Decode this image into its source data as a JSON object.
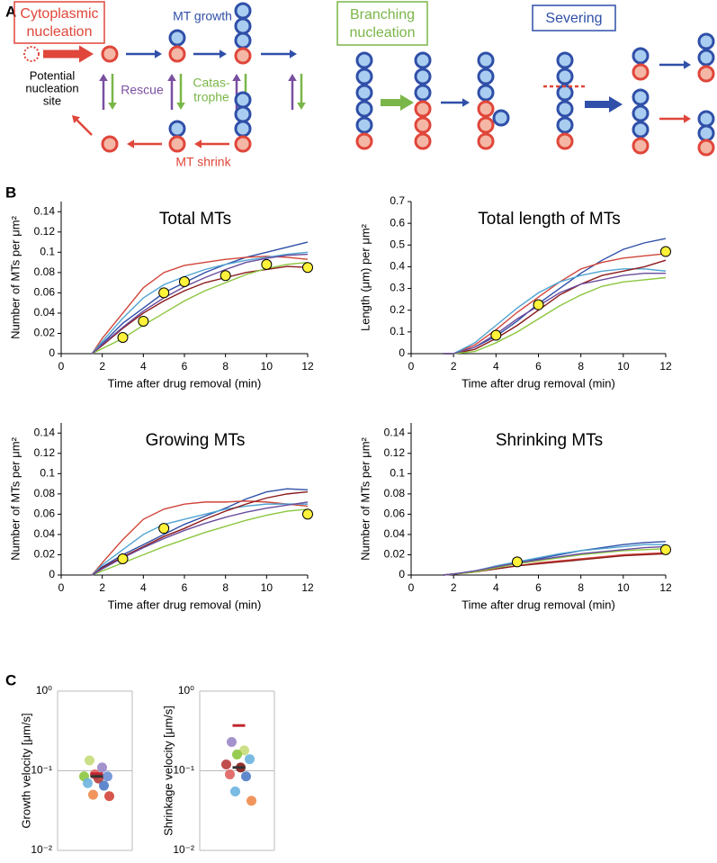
{
  "panel_labels": [
    "A",
    "B",
    "C"
  ],
  "diagram": {
    "cytoplasmic_nucleation": [
      "Cytoplasmic",
      "nucleation"
    ],
    "mt_growth": "MT growth",
    "potential_site": [
      "Potential",
      "nucleation",
      "site"
    ],
    "rescue": "Rescue",
    "catastrophe": [
      "Catas-",
      "trophe"
    ],
    "mt_shrink": "MT shrink",
    "branching_nucleation": [
      "Branching",
      "nucleation"
    ],
    "severing": "Severing"
  },
  "chart_data": [
    {
      "type": "line",
      "title": "Total MTs",
      "xlabel": "Time after drug removal (min)",
      "ylabel": "Number of MTs per μm²",
      "xlim": [
        0,
        12
      ],
      "xticks": [
        0,
        2,
        4,
        6,
        8,
        10,
        12
      ],
      "ylim": [
        0,
        0.15
      ],
      "yticks": [
        0,
        0.02,
        0.04,
        0.06,
        0.08,
        0.1,
        0.12,
        0.14
      ],
      "x": [
        1.5,
        2,
        3,
        4,
        5,
        6,
        7,
        8,
        9,
        10,
        11,
        12
      ],
      "series": [
        {
          "color": "#2f4fa8",
          "values": [
            0,
            0.01,
            0.03,
            0.045,
            0.06,
            0.07,
            0.08,
            0.088,
            0.095,
            0.1,
            0.105,
            0.11
          ]
        },
        {
          "color": "#d0453a",
          "values": [
            0,
            0.015,
            0.04,
            0.065,
            0.08,
            0.087,
            0.09,
            0.093,
            0.095,
            0.096,
            0.095,
            0.093
          ]
        },
        {
          "color": "#4fa3d1",
          "values": [
            0,
            0.012,
            0.035,
            0.055,
            0.068,
            0.076,
            0.083,
            0.088,
            0.092,
            0.095,
            0.098,
            0.1
          ]
        },
        {
          "color": "#8b1a1a",
          "values": [
            0,
            0.008,
            0.025,
            0.04,
            0.052,
            0.062,
            0.07,
            0.075,
            0.08,
            0.083,
            0.086,
            0.085
          ]
        },
        {
          "color": "#8cc63f",
          "values": [
            0,
            0.005,
            0.015,
            0.028,
            0.04,
            0.052,
            0.062,
            0.07,
            0.078,
            0.084,
            0.088,
            0.09
          ]
        },
        {
          "color": "#6a4c9c",
          "values": [
            0,
            0.009,
            0.026,
            0.042,
            0.055,
            0.066,
            0.075,
            0.083,
            0.09,
            0.094,
            0.097,
            0.098
          ]
        }
      ],
      "points": {
        "x": [
          3,
          4,
          5,
          6,
          8,
          10,
          12
        ],
        "values": [
          0.016,
          0.032,
          0.06,
          0.071,
          0.077,
          0.088,
          0.085
        ]
      }
    },
    {
      "type": "line",
      "title": "Total length of MTs",
      "xlabel": "Time after drug removal (min)",
      "ylabel": "Length (μm) per μm²",
      "xlim": [
        0,
        12
      ],
      "xticks": [
        0,
        2,
        4,
        6,
        8,
        10,
        12
      ],
      "ylim": [
        0,
        0.7
      ],
      "yticks": [
        0,
        0.1,
        0.2,
        0.3,
        0.4,
        0.5,
        0.6,
        0.7
      ],
      "x": [
        1.5,
        2,
        3,
        4,
        5,
        6,
        7,
        8,
        9,
        10,
        11,
        12
      ],
      "series": [
        {
          "color": "#2f4fa8",
          "values": [
            0,
            0,
            0.03,
            0.08,
            0.15,
            0.23,
            0.3,
            0.37,
            0.43,
            0.48,
            0.51,
            0.53
          ]
        },
        {
          "color": "#d0453a",
          "values": [
            0,
            0,
            0.04,
            0.11,
            0.19,
            0.26,
            0.33,
            0.39,
            0.42,
            0.44,
            0.45,
            0.46
          ]
        },
        {
          "color": "#4fa3d1",
          "values": [
            0,
            0,
            0.05,
            0.13,
            0.21,
            0.28,
            0.33,
            0.36,
            0.38,
            0.39,
            0.39,
            0.38
          ]
        },
        {
          "color": "#8b1a1a",
          "values": [
            0,
            0,
            0.02,
            0.07,
            0.13,
            0.2,
            0.27,
            0.32,
            0.36,
            0.38,
            0.4,
            0.43
          ]
        },
        {
          "color": "#8cc63f",
          "values": [
            0,
            0,
            0.01,
            0.05,
            0.1,
            0.16,
            0.22,
            0.27,
            0.31,
            0.33,
            0.34,
            0.35
          ]
        },
        {
          "color": "#6a4c9c",
          "values": [
            0,
            0,
            0.03,
            0.09,
            0.16,
            0.22,
            0.28,
            0.32,
            0.34,
            0.36,
            0.37,
            0.37
          ]
        }
      ],
      "points": {
        "x": [
          4,
          6,
          12
        ],
        "values": [
          0.085,
          0.225,
          0.47
        ]
      }
    },
    {
      "type": "line",
      "title": "Growing MTs",
      "xlabel": "Time after drug removal (min)",
      "ylabel": "Number of MTs per μm²",
      "xlim": [
        0,
        12
      ],
      "xticks": [
        0,
        2,
        4,
        6,
        8,
        10,
        12
      ],
      "ylim": [
        0,
        0.15
      ],
      "yticks": [
        0,
        0.02,
        0.04,
        0.06,
        0.08,
        0.1,
        0.12,
        0.14
      ],
      "x": [
        1.5,
        2,
        3,
        4,
        5,
        6,
        7,
        8,
        9,
        10,
        11,
        12
      ],
      "series": [
        {
          "color": "#2f4fa8",
          "values": [
            0,
            0.008,
            0.02,
            0.03,
            0.04,
            0.05,
            0.058,
            0.066,
            0.075,
            0.082,
            0.085,
            0.084
          ]
        },
        {
          "color": "#d0453a",
          "values": [
            0,
            0.012,
            0.035,
            0.055,
            0.065,
            0.07,
            0.072,
            0.072,
            0.073,
            0.072,
            0.07,
            0.068
          ]
        },
        {
          "color": "#4fa3d1",
          "values": [
            0,
            0.01,
            0.025,
            0.04,
            0.05,
            0.055,
            0.06,
            0.065,
            0.068,
            0.07,
            0.07,
            0.07
          ]
        },
        {
          "color": "#8b1a1a",
          "values": [
            0,
            0.007,
            0.018,
            0.028,
            0.038,
            0.046,
            0.055,
            0.063,
            0.07,
            0.076,
            0.08,
            0.082
          ]
        },
        {
          "color": "#8cc63f",
          "values": [
            0,
            0.004,
            0.012,
            0.02,
            0.028,
            0.035,
            0.042,
            0.048,
            0.054,
            0.059,
            0.063,
            0.065
          ]
        },
        {
          "color": "#6a4c9c",
          "values": [
            0,
            0.006,
            0.017,
            0.027,
            0.036,
            0.044,
            0.051,
            0.057,
            0.062,
            0.066,
            0.069,
            0.072
          ]
        }
      ],
      "points": {
        "x": [
          3,
          5,
          12
        ],
        "values": [
          0.016,
          0.046,
          0.06
        ]
      }
    },
    {
      "type": "line",
      "title": "Shrinking MTs",
      "xlabel": "Time after drug removal (min)",
      "ylabel": "Number of MTs per μm²",
      "xlim": [
        0,
        12
      ],
      "xticks": [
        0,
        2,
        4,
        6,
        8,
        10,
        12
      ],
      "ylim": [
        0,
        0.15
      ],
      "yticks": [
        0,
        0.02,
        0.04,
        0.06,
        0.08,
        0.1,
        0.12,
        0.14
      ],
      "x": [
        1.5,
        2,
        3,
        4,
        5,
        6,
        7,
        8,
        9,
        10,
        11,
        12
      ],
      "series": [
        {
          "color": "#2f4fa8",
          "values": [
            0,
            0.001,
            0.004,
            0.008,
            0.012,
            0.016,
            0.02,
            0.024,
            0.027,
            0.03,
            0.032,
            0.033
          ]
        },
        {
          "color": "#d0453a",
          "values": [
            0,
            0.001,
            0.003,
            0.006,
            0.009,
            0.012,
            0.014,
            0.016,
            0.018,
            0.02,
            0.021,
            0.022
          ]
        },
        {
          "color": "#4fa3d1",
          "values": [
            0,
            0.001,
            0.004,
            0.009,
            0.013,
            0.017,
            0.021,
            0.024,
            0.026,
            0.028,
            0.03,
            0.03
          ]
        },
        {
          "color": "#8b1a1a",
          "values": [
            0,
            0.001,
            0.003,
            0.006,
            0.009,
            0.011,
            0.013,
            0.015,
            0.017,
            0.019,
            0.02,
            0.021
          ]
        },
        {
          "color": "#8cc63f",
          "values": [
            0,
            0.001,
            0.003,
            0.007,
            0.011,
            0.014,
            0.017,
            0.02,
            0.022,
            0.024,
            0.025,
            0.026
          ]
        },
        {
          "color": "#6a4c9c",
          "values": [
            0,
            0.001,
            0.004,
            0.008,
            0.012,
            0.015,
            0.018,
            0.021,
            0.023,
            0.025,
            0.027,
            0.028
          ]
        }
      ],
      "points": {
        "x": [
          5,
          12
        ],
        "values": [
          0.013,
          0.025
        ]
      }
    },
    {
      "type": "strip",
      "ylabel": "Growth velocity [μm/s]",
      "log_scale": true,
      "grid": true,
      "ylim": [
        0.01,
        1
      ],
      "yticks": [
        {
          "value": 1,
          "label": "10⁰"
        },
        {
          "value": 0.1,
          "label": "10⁻¹"
        },
        {
          "value": 0.01,
          "label": "10⁻²"
        }
      ],
      "values": [
        0.135,
        0.11,
        0.09,
        0.085,
        0.085,
        0.08,
        0.07,
        0.065,
        0.05,
        0.048
      ],
      "colors": [
        "#c5dc7a",
        "#9a86c8",
        "#e06060",
        "#6b8fd6",
        "#8cc63f",
        "#b83a3a",
        "#6cb4e0",
        "#4f7cc8",
        "#ef8a4a",
        "#d0453a"
      ],
      "mean_lines": [
        {
          "value": 0.092,
          "color": "#c0272d"
        },
        {
          "value": 0.085,
          "color": "#333333"
        }
      ]
    },
    {
      "type": "strip",
      "ylabel": "Shrinkage velocity [μm/s]",
      "log_scale": true,
      "grid": true,
      "ylim": [
        0.01,
        1
      ],
      "yticks": [
        {
          "value": 1,
          "label": "10⁰"
        },
        {
          "value": 0.1,
          "label": "10⁻¹"
        },
        {
          "value": 0.01,
          "label": "10⁻²"
        }
      ],
      "values": [
        0.23,
        0.18,
        0.16,
        0.14,
        0.12,
        0.11,
        0.09,
        0.085,
        0.055,
        0.042
      ],
      "colors": [
        "#9a86c8",
        "#c5dc7a",
        "#8cc63f",
        "#6cb4e0",
        "#b83a3a",
        "#8b1a1a",
        "#e06060",
        "#4f7cc8",
        "#6cb4e0",
        "#ef8a4a"
      ],
      "mean_lines": [
        {
          "value": 0.37,
          "color": "#c0272d"
        },
        {
          "value": 0.11,
          "color": "#333333"
        }
      ]
    }
  ]
}
